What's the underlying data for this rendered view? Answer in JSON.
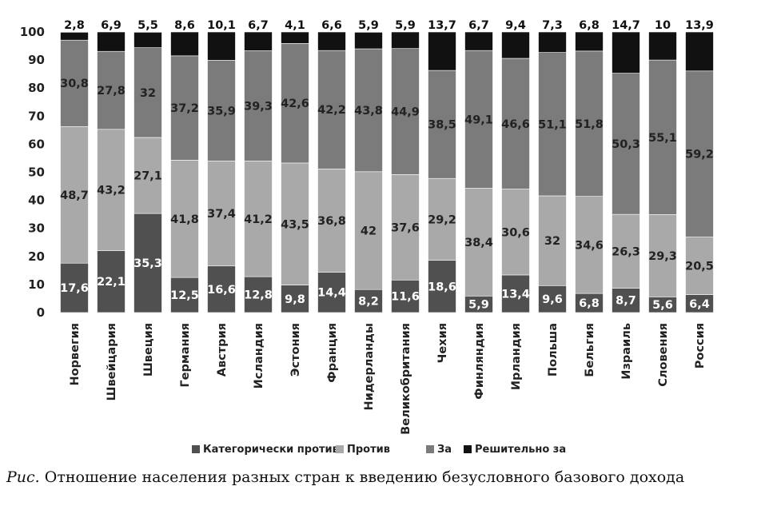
{
  "chart_data": {
    "type": "bar",
    "stacked": true,
    "categories": [
      "Норвегия",
      "Швейцария",
      "Швеция",
      "Германия",
      "Австрия",
      "Исландия",
      "Эстония",
      "Франция",
      "Нидерланды",
      "Великобритания",
      "Чехия",
      "Финляндия",
      "Ирландия",
      "Польша",
      "Бельгия",
      "Израиль",
      "Словения",
      "Россия"
    ],
    "series": [
      {
        "name": "Категорически против",
        "color": "#505050",
        "values": [
          17.6,
          22.1,
          35.3,
          12.5,
          16.6,
          12.8,
          9.8,
          14.4,
          8.2,
          11.6,
          18.6,
          5.9,
          13.4,
          9.6,
          6.8,
          8.7,
          5.6,
          6.4
        ],
        "labels": [
          "17,6",
          "22,1",
          "35,3",
          "12,5",
          "16,6",
          "12,8",
          "9,8",
          "14,4",
          "8,2",
          "11,6",
          "18,6",
          "5,9",
          "13,4",
          "9,6",
          "6,8",
          "8,7",
          "5,6",
          "6,4"
        ]
      },
      {
        "name": "Против",
        "color": "#a9a9a9",
        "values": [
          48.7,
          43.2,
          27.1,
          41.8,
          37.4,
          41.2,
          43.5,
          36.8,
          42,
          37.6,
          29.2,
          38.4,
          30.6,
          32,
          34.6,
          26.3,
          29.3,
          20.5
        ],
        "labels": [
          "48,7",
          "43,2",
          "27,1",
          "41,8",
          "37,4",
          "41,2",
          "43,5",
          "36,8",
          "42",
          "37,6",
          "29,2",
          "38,4",
          "30,6",
          "32",
          "34,6",
          "26,3",
          "29,3",
          "20,5"
        ]
      },
      {
        "name": "За",
        "color": "#7b7b7b",
        "values": [
          30.8,
          27.8,
          32,
          37.2,
          35.9,
          39.3,
          42.6,
          42.2,
          43.8,
          44.9,
          38.5,
          49.1,
          46.6,
          51.1,
          51.8,
          50.3,
          55.1,
          59.2
        ],
        "labels": [
          "30,8",
          "27,8",
          "32",
          "37,2",
          "35,9",
          "39,3",
          "42,6",
          "42,2",
          "43,8",
          "44,9",
          "38,5",
          "49,1",
          "46,6",
          "51,1",
          "51,8",
          "50,3",
          "55,1",
          "59,2"
        ]
      },
      {
        "name": "Решительно за",
        "color": "#111111",
        "values": [
          2.8,
          6.9,
          5.5,
          8.6,
          10.1,
          6.7,
          4.1,
          6.6,
          5.9,
          5.9,
          13.7,
          6.7,
          9.4,
          7.3,
          6.8,
          14.7,
          10,
          13.9
        ],
        "labels": [
          "2,8",
          "6,9",
          "5,5",
          "8,6",
          "10,1",
          "6,7",
          "4,1",
          "6,6",
          "5,9",
          "5,9",
          "13,7",
          "6,7",
          "9,4",
          "7,3",
          "6,8",
          "14,7",
          "10",
          "13,9"
        ]
      }
    ],
    "ylim": [
      0,
      100
    ],
    "yticks": [
      0,
      10,
      20,
      30,
      40,
      50,
      60,
      70,
      80,
      90,
      100
    ],
    "grid": false,
    "legend_position": "bottom"
  },
  "caption": {
    "prefix": "Рис.",
    "text": "Отношение населения разных стран к введению безусловного базового дохода"
  }
}
